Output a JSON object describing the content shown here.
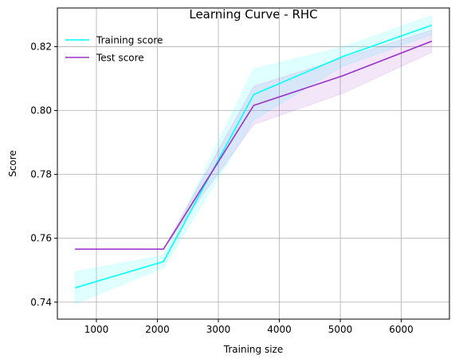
{
  "chart_data": {
    "type": "line",
    "title": "Learning Curve - RHC",
    "xlabel": "Training size",
    "ylabel": "Score",
    "xlim": [
      360,
      6790
    ],
    "ylim": [
      0.7347,
      0.8321
    ],
    "xticks": [
      1000,
      2000,
      3000,
      4000,
      5000,
      6000
    ],
    "xtick_labels": [
      "1000",
      "2000",
      "3000",
      "4000",
      "5000",
      "6000"
    ],
    "yticks": [
      0.74,
      0.76,
      0.78,
      0.8,
      0.82
    ],
    "ytick_labels": [
      "0.74",
      "0.76",
      "0.78",
      "0.80",
      "0.82"
    ],
    "grid": true,
    "legend_position": "top-left",
    "x": [
      650,
      2100,
      3580,
      5030,
      6500
    ],
    "series": [
      {
        "name": "Training score",
        "color": "#00ffff",
        "values": [
          0.7445,
          0.7527,
          0.805,
          0.8168,
          0.8267
        ],
        "lower": [
          0.7395,
          0.7507,
          0.797,
          0.8138,
          0.8237
        ],
        "upper": [
          0.7495,
          0.7547,
          0.813,
          0.8198,
          0.8297
        ]
      },
      {
        "name": "Test score",
        "color": "#9932cc",
        "values": [
          0.7566,
          0.7566,
          0.8016,
          0.8108,
          0.8217
        ],
        "lower": [
          0.7566,
          0.7566,
          0.7956,
          0.8053,
          0.8182
        ],
        "upper": [
          0.7566,
          0.7566,
          0.8076,
          0.8163,
          0.8252
        ]
      }
    ]
  }
}
